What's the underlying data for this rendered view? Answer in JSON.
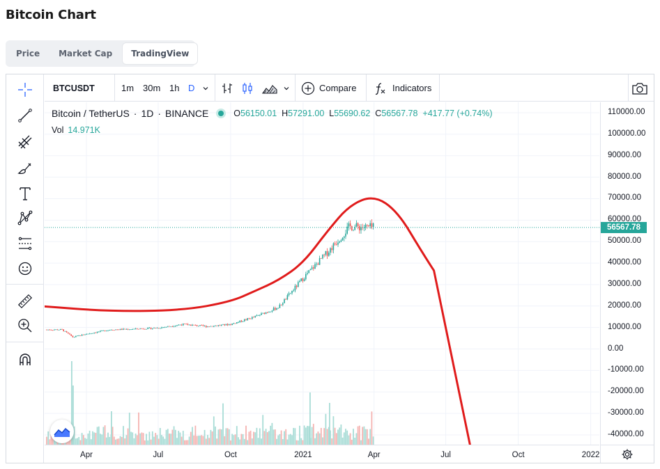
{
  "page": {
    "title": "Bitcoin Chart"
  },
  "tabs": [
    {
      "label": "Price",
      "active": false
    },
    {
      "label": "Market Cap",
      "active": false
    },
    {
      "label": "TradingView",
      "active": true
    }
  ],
  "toolbar": {
    "symbol": "BTCUSDT",
    "intervals": [
      "1m",
      "30m",
      "1h",
      "D"
    ],
    "active_interval": "D",
    "compare_label": "Compare",
    "indicators_label": "Indicators"
  },
  "legend": {
    "name": "Bitcoin / TetherUS",
    "interval": "1D",
    "exchange": "BINANCE",
    "open_label": "O",
    "open": "56150.01",
    "high_label": "H",
    "high": "57291.00",
    "low_label": "L",
    "low": "55690.62",
    "close_label": "C",
    "close": "56567.78",
    "change": "+417.77 (+0.74%)",
    "vol_label": "Vol",
    "vol_value": "14.971K"
  },
  "price_axis": {
    "labels": [
      "110000.00",
      "100000.00",
      "90000.00",
      "80000.00",
      "70000.00",
      "60000.00",
      "50000.00",
      "40000.00",
      "30000.00",
      "20000.00",
      "10000.00",
      "0.00",
      "-10000.00",
      "-20000.00",
      "-30000.00",
      "-40000.00"
    ],
    "current_price": "56567.78"
  },
  "time_axis": {
    "labels": [
      "Apr",
      "Jul",
      "Oct",
      "2021",
      "Apr",
      "Jul",
      "Oct",
      "2022"
    ]
  },
  "colors": {
    "up": "#26a69a",
    "down": "#ef5350",
    "overlay": "#e01b1b",
    "active_interval": "#2962ff"
  },
  "chart_data": {
    "type": "candlestick",
    "symbol": "BTCUSDT",
    "ylim": [
      -45000,
      115000
    ],
    "x_ticks": [
      "Apr",
      "Jul",
      "Oct",
      "2021",
      "Apr",
      "Jul",
      "Oct",
      "2022"
    ],
    "price_path": [
      {
        "t": "2020-03",
        "close": 9000
      },
      {
        "t": "2020-03-15",
        "close": 5500
      },
      {
        "t": "2020-04",
        "close": 7000
      },
      {
        "t": "2020-05",
        "close": 9000
      },
      {
        "t": "2020-06",
        "close": 9300
      },
      {
        "t": "2020-07",
        "close": 9800
      },
      {
        "t": "2020-08",
        "close": 11500
      },
      {
        "t": "2020-09",
        "close": 10500
      },
      {
        "t": "2020-10",
        "close": 11500
      },
      {
        "t": "2020-11",
        "close": 15000
      },
      {
        "t": "2020-12",
        "close": 19500
      },
      {
        "t": "2021-01",
        "close": 33000
      },
      {
        "t": "2021-02",
        "close": 45000
      },
      {
        "t": "2021-03",
        "close": 57000
      },
      {
        "t": "2021-04",
        "close": 56567.78
      }
    ],
    "overlay_curve": [
      {
        "t": "2020-02",
        "y": 20000
      },
      {
        "t": "2020-05",
        "y": 17500
      },
      {
        "t": "2020-08",
        "y": 18000
      },
      {
        "t": "2020-10",
        "y": 22000
      },
      {
        "t": "2020-11",
        "y": 27000
      },
      {
        "t": "2020-12",
        "y": 32000
      },
      {
        "t": "2021-01",
        "y": 40000
      },
      {
        "t": "2021-02",
        "y": 55000
      },
      {
        "t": "2021-03",
        "y": 67000
      },
      {
        "t": "2021-04",
        "y": 71500
      },
      {
        "t": "2021-05",
        "y": 64000
      },
      {
        "t": "2021-06",
        "y": 45000
      },
      {
        "t": "2021-07",
        "y": 28000
      },
      {
        "t": "2021-08",
        "y": -45000
      }
    ]
  }
}
